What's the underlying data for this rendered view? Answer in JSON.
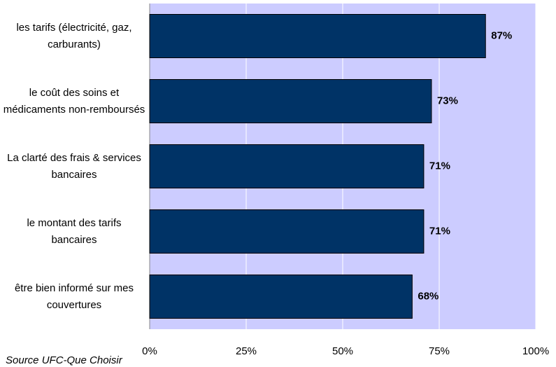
{
  "chart_data": {
    "type": "bar",
    "orientation": "horizontal",
    "categories": [
      "les tarifs (électricité, gaz, carburants)",
      "le coût des soins et médicaments non-remboursés",
      "La clarté des frais & services bancaires",
      "le montant des tarifs bancaires",
      "être bien informé sur mes couvertures"
    ],
    "values": [
      87,
      73,
      71,
      71,
      68
    ],
    "value_labels": [
      "87%",
      "73%",
      "71%",
      "71%",
      "68%"
    ],
    "color": "#003366",
    "xlim": [
      0,
      100
    ],
    "xticks": [
      {
        "value": 0,
        "label": "0%"
      },
      {
        "value": 25,
        "label": "25%"
      },
      {
        "value": 50,
        "label": "50%"
      },
      {
        "value": 75,
        "label": "75%"
      },
      {
        "value": 100,
        "label": "100%"
      }
    ],
    "grid": true,
    "source": "Source UFC-Que Choisir"
  }
}
